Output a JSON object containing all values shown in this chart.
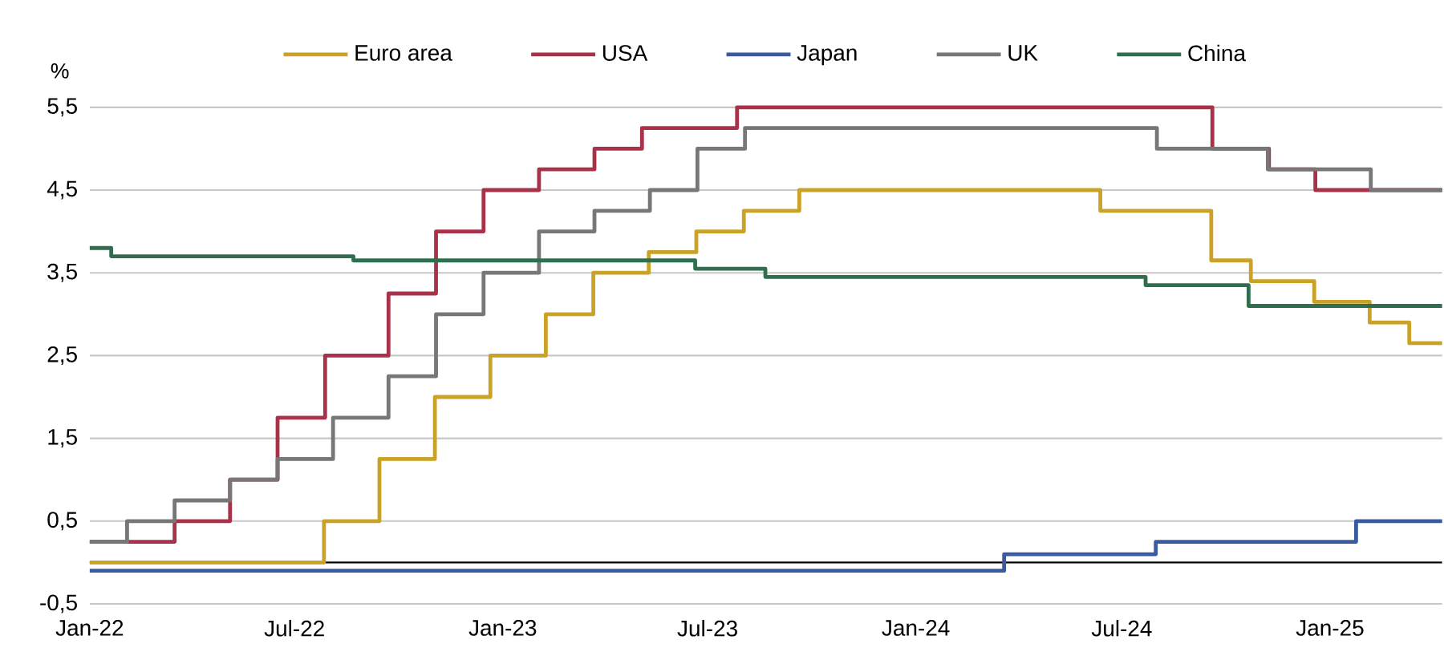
{
  "chart_data": {
    "type": "step",
    "ylabel": "%",
    "xlim": [
      "2022-01-01",
      "2025-04-10"
    ],
    "ylim": [
      -0.5,
      5.5
    ],
    "xticks": [
      {
        "value": "2022-01-01",
        "label": "Jan-22"
      },
      {
        "value": "2022-07-01",
        "label": "Jul-22"
      },
      {
        "value": "2023-01-01",
        "label": "Jan-23"
      },
      {
        "value": "2023-07-01",
        "label": "Jul-23"
      },
      {
        "value": "2024-01-01",
        "label": "Jan-24"
      },
      {
        "value": "2024-07-01",
        "label": "Jul-24"
      },
      {
        "value": "2025-01-01",
        "label": "Jan-25"
      }
    ],
    "yticks": [
      {
        "value": -0.5,
        "label": "-0,5"
      },
      {
        "value": 0.5,
        "label": "0,5"
      },
      {
        "value": 1.5,
        "label": "1,5"
      },
      {
        "value": 2.5,
        "label": "2,5"
      },
      {
        "value": 3.5,
        "label": "3,5"
      },
      {
        "value": 4.5,
        "label": "4,5"
      },
      {
        "value": 5.5,
        "label": "5,5"
      }
    ],
    "grid": "y",
    "legend": "top",
    "ref_lines": [
      {
        "axis": "y",
        "value": 0,
        "color": "#000000"
      }
    ],
    "series": [
      {
        "name": "Euro area",
        "color": "#c9a227",
        "x": [
          "2022-01-01",
          "2022-07-27",
          "2022-09-14",
          "2022-11-02",
          "2022-12-21",
          "2023-02-08",
          "2023-03-22",
          "2023-05-10",
          "2023-06-21",
          "2023-08-02",
          "2023-09-20",
          "2024-06-12",
          "2024-09-18",
          "2024-10-23",
          "2024-12-18",
          "2025-02-05",
          "2025-03-12",
          "2025-04-10"
        ],
        "values": [
          0,
          0.5,
          1.25,
          2.0,
          2.5,
          3.0,
          3.5,
          3.75,
          4.0,
          4.25,
          4.5,
          4.25,
          3.65,
          3.4,
          3.15,
          2.9,
          2.65,
          2.65
        ]
      },
      {
        "name": "USA",
        "color": "#a8324a",
        "x": [
          "2022-01-01",
          "2022-03-17",
          "2022-05-05",
          "2022-06-16",
          "2022-07-28",
          "2022-09-22",
          "2022-11-03",
          "2022-12-15",
          "2023-02-02",
          "2023-03-23",
          "2023-05-04",
          "2023-07-27",
          "2024-09-19",
          "2024-11-08",
          "2024-12-19",
          "2025-04-10"
        ],
        "values": [
          0.25,
          0.5,
          1.0,
          1.75,
          2.5,
          3.25,
          4.0,
          4.5,
          4.75,
          5.0,
          5.25,
          5.5,
          5.0,
          4.75,
          4.5,
          4.5
        ]
      },
      {
        "name": "Japan",
        "color": "#3a5ba0",
        "x": [
          "2022-01-01",
          "2024-03-19",
          "2024-07-31",
          "2025-01-24",
          "2025-04-10"
        ],
        "values": [
          -0.1,
          0.1,
          0.25,
          0.5,
          0.5
        ]
      },
      {
        "name": "UK",
        "color": "#777777",
        "x": [
          "2022-01-01",
          "2022-02-03",
          "2022-03-17",
          "2022-05-05",
          "2022-06-16",
          "2022-08-04",
          "2022-09-22",
          "2022-11-03",
          "2022-12-15",
          "2023-02-02",
          "2023-03-23",
          "2023-05-11",
          "2023-06-22",
          "2023-08-03",
          "2024-08-01",
          "2024-11-07",
          "2025-02-06",
          "2025-04-10"
        ],
        "values": [
          0.25,
          0.5,
          0.75,
          1.0,
          1.25,
          1.75,
          2.25,
          3.0,
          3.5,
          4.0,
          4.25,
          4.5,
          5.0,
          5.25,
          5.0,
          4.75,
          4.5,
          4.5
        ]
      },
      {
        "name": "China",
        "color": "#2f6e4e",
        "x": [
          "2022-01-01",
          "2022-01-20",
          "2022-08-22",
          "2023-06-20",
          "2023-08-21",
          "2024-07-22",
          "2024-10-21",
          "2025-04-10"
        ],
        "values": [
          3.8,
          3.7,
          3.65,
          3.55,
          3.45,
          3.35,
          3.1,
          3.1
        ]
      }
    ]
  }
}
